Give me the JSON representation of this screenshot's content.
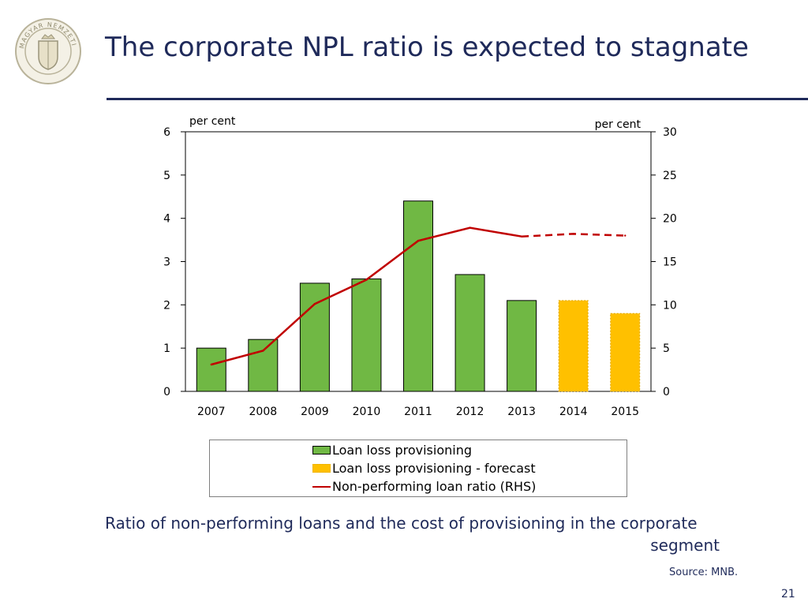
{
  "slide": {
    "title": "The corporate NPL ratio is expected to stagnate",
    "caption_line1": "Ratio of non-performing loans and the cost of provisioning in the corporate",
    "caption_line2": "segment",
    "source": "Source: MNB.",
    "page_number": "21",
    "logo_text": "MAGYAR NEMZETI BANK"
  },
  "colors": {
    "title": "#1f2a5a",
    "bar": "#70b844",
    "bar_forecast": "#ffc000",
    "line": "#c00000"
  },
  "chart_data": {
    "type": "bar",
    "categories": [
      "2007",
      "2008",
      "2009",
      "2010",
      "2011",
      "2012",
      "2013",
      "2014",
      "2015"
    ],
    "series": [
      {
        "name": "Loan loss provisioning",
        "type": "bar",
        "axis": "left",
        "values": [
          1.0,
          1.2,
          2.5,
          2.6,
          4.4,
          2.7,
          2.1,
          null,
          null
        ]
      },
      {
        "name": "Loan loss provisioning - forecast",
        "type": "bar",
        "axis": "left",
        "values": [
          null,
          null,
          null,
          null,
          null,
          null,
          null,
          2.1,
          1.8
        ]
      },
      {
        "name": "Non-performing loan ratio (RHS)",
        "type": "line",
        "axis": "right",
        "values": [
          3.1,
          4.7,
          10.1,
          12.9,
          17.4,
          18.9,
          17.9,
          18.2,
          18.0
        ],
        "forecast_from_index": 6
      }
    ],
    "left_axis": {
      "label": "per cent",
      "ylim": [
        0,
        6
      ],
      "ticks": [
        0,
        1,
        2,
        3,
        4,
        5,
        6
      ]
    },
    "right_axis": {
      "label": "per cent",
      "ylim": [
        0,
        30
      ],
      "ticks": [
        0,
        5,
        10,
        15,
        20,
        25,
        30
      ]
    },
    "legend": [
      "Loan loss provisioning",
      "Loan loss provisioning - forecast",
      "Non-performing loan ratio (RHS)"
    ]
  }
}
